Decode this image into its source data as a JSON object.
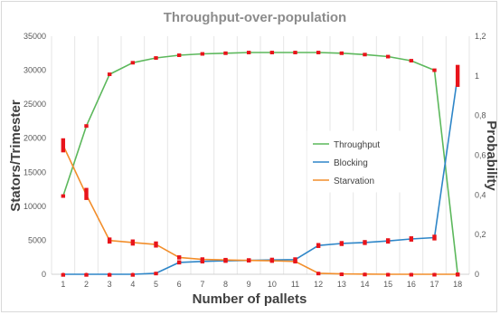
{
  "chart_data": {
    "type": "line",
    "title": "Throughput-over-population",
    "xlabel": "Number of pallets",
    "ylabel_left": "Stators/Trimester",
    "ylabel_right": "Probability",
    "x": [
      1,
      2,
      3,
      4,
      5,
      6,
      7,
      8,
      9,
      10,
      11,
      12,
      13,
      14,
      15,
      16,
      17,
      18
    ],
    "x_tick_labels": [
      "1",
      "2",
      "3",
      "4",
      "5",
      "6",
      "7",
      "8",
      "9",
      "10",
      "11",
      "12",
      "13",
      "14",
      "15",
      "16",
      "17",
      "18"
    ],
    "ylim_left": [
      0,
      35000
    ],
    "ylim_right": [
      0,
      1.2
    ],
    "y_left_ticks": [
      "0",
      "5000",
      "10000",
      "15000",
      "20000",
      "25000",
      "30000",
      "35000"
    ],
    "y_right_ticks": [
      "0",
      "0,2",
      "0,4",
      "0,6",
      "0,8",
      "1",
      "1,2"
    ],
    "grid": "vertical",
    "legend_position": "center-right",
    "series": [
      {
        "name": "Throughput",
        "axis": "left",
        "color": "#5cb85c",
        "values": [
          11500,
          21800,
          29400,
          31100,
          31800,
          32200,
          32400,
          32500,
          32600,
          32600,
          32600,
          32600,
          32500,
          32300,
          32000,
          31400,
          30000,
          0
        ],
        "error_low": [
          11500,
          21700,
          29300,
          31000,
          31700,
          32100,
          32300,
          32400,
          32500,
          32500,
          32500,
          32500,
          32400,
          32200,
          31900,
          31300,
          29900,
          0
        ],
        "error_high": [
          11600,
          21900,
          29500,
          31200,
          31900,
          32300,
          32500,
          32600,
          32700,
          32700,
          32700,
          32700,
          32600,
          32400,
          32100,
          31500,
          30100,
          100
        ]
      },
      {
        "name": "Blocking",
        "axis": "right",
        "color": "#2e86c8",
        "values": [
          0,
          0,
          0,
          0,
          0.005,
          0.06,
          0.065,
          0.068,
          0.07,
          0.072,
          0.074,
          0.145,
          0.155,
          0.16,
          0.168,
          0.178,
          0.185,
          1.0
        ],
        "error_low": [
          0,
          0,
          0,
          0,
          0.003,
          0.055,
          0.06,
          0.063,
          0.065,
          0.066,
          0.068,
          0.138,
          0.148,
          0.153,
          0.16,
          0.17,
          0.176,
          0.95
        ],
        "error_high": [
          0,
          0,
          0,
          0,
          0.007,
          0.065,
          0.07,
          0.073,
          0.075,
          0.078,
          0.08,
          0.152,
          0.162,
          0.167,
          0.176,
          0.186,
          0.194,
          1.05
        ]
      },
      {
        "name": "Starvation",
        "axis": "right",
        "color": "#f28e2b",
        "values": [
          0.65,
          0.4,
          0.17,
          0.16,
          0.15,
          0.085,
          0.075,
          0.072,
          0.07,
          0.068,
          0.065,
          0.005,
          0.002,
          0.001,
          0,
          0,
          0,
          0
        ],
        "error_low": [
          0.62,
          0.38,
          0.16,
          0.15,
          0.14,
          0.08,
          0.07,
          0.067,
          0.065,
          0.063,
          0.06,
          0.003,
          0.001,
          0,
          0,
          0,
          0,
          0
        ],
        "error_high": [
          0.68,
          0.43,
          0.18,
          0.17,
          0.16,
          0.09,
          0.08,
          0.077,
          0.075,
          0.073,
          0.07,
          0.007,
          0.003,
          0.002,
          0.001,
          0.001,
          0.001,
          0.001
        ]
      }
    ],
    "error_bar_color": "#e8141b"
  }
}
